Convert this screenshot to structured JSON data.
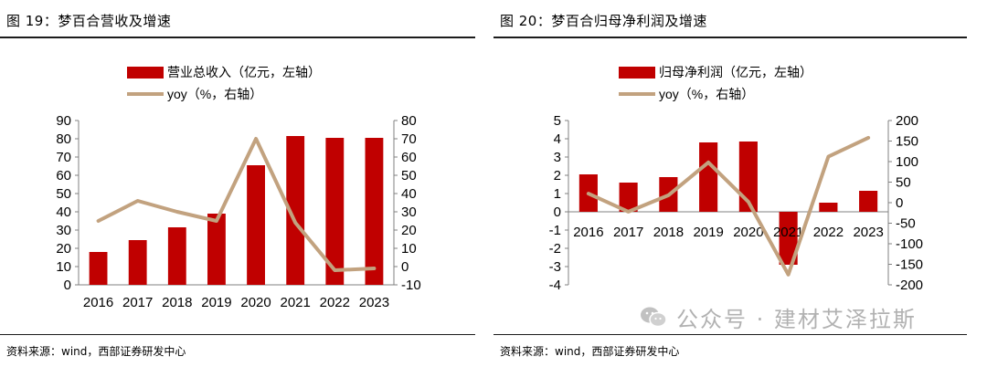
{
  "left": {
    "figure_title": "图 19：梦百合营收及增速",
    "source": "资料来源：wind，西部证券研发中心"
  },
  "right": {
    "figure_title": "图 20：梦百合归母净利润及增速",
    "source": "资料来源：wind，西部证券研发中心"
  },
  "watermark": {
    "text": "公众号 · 建材艾泽拉斯",
    "icon": "wechat-icon"
  },
  "colors": {
    "bar": "#c00000",
    "line": "#c2a27f",
    "rule": "#1c1c1c",
    "axis": "#808080"
  },
  "chart_data": [
    {
      "type": "bar",
      "title": "图 19：梦百合营收及增速",
      "categories": [
        "2016",
        "2017",
        "2018",
        "2019",
        "2020",
        "2021",
        "2022",
        "2023"
      ],
      "series": [
        {
          "name": "营业总收入（亿元，左轴）",
          "type": "bar",
          "axis": "left",
          "values": [
            18,
            24.5,
            31.5,
            39,
            65.5,
            81.5,
            80.5,
            80.5
          ]
        },
        {
          "name": "yoy（%，右轴）",
          "type": "line",
          "axis": "right",
          "values": [
            25,
            36,
            30,
            25,
            70,
            24,
            -2,
            -1
          ]
        }
      ],
      "left_axis": {
        "min": 0,
        "max": 90,
        "ticks": [
          0,
          10,
          20,
          30,
          40,
          50,
          60,
          70,
          80,
          90
        ]
      },
      "right_axis": {
        "min": -10,
        "max": 80,
        "ticks": [
          -10,
          0,
          10,
          20,
          30,
          40,
          50,
          60,
          70,
          80
        ]
      },
      "legend": [
        "营业总收入（亿元，左轴）",
        "yoy（%，右轴）"
      ]
    },
    {
      "type": "bar",
      "title": "图 20：梦百合归母净利润及增速",
      "categories": [
        "2016",
        "2017",
        "2018",
        "2019",
        "2020",
        "2021",
        "2022",
        "2023"
      ],
      "series": [
        {
          "name": "归母净利润（亿元，左轴）",
          "type": "bar",
          "axis": "left",
          "values": [
            2.05,
            1.6,
            1.9,
            3.8,
            3.85,
            -2.9,
            0.5,
            1.15
          ]
        },
        {
          "name": "yoy（%，右轴）",
          "type": "line",
          "axis": "right",
          "values": [
            22,
            -22,
            18,
            98,
            2,
            -175,
            112,
            158
          ]
        }
      ],
      "left_axis": {
        "min": -4,
        "max": 5,
        "ticks": [
          -4,
          -3,
          -2,
          -1,
          0,
          1,
          2,
          3,
          4,
          5
        ]
      },
      "right_axis": {
        "min": -200,
        "max": 200,
        "ticks": [
          -200,
          -150,
          -100,
          -50,
          0,
          50,
          100,
          150,
          200
        ]
      },
      "legend": [
        "归母净利润（亿元，左轴）",
        "yoy（%，右轴）"
      ]
    }
  ]
}
